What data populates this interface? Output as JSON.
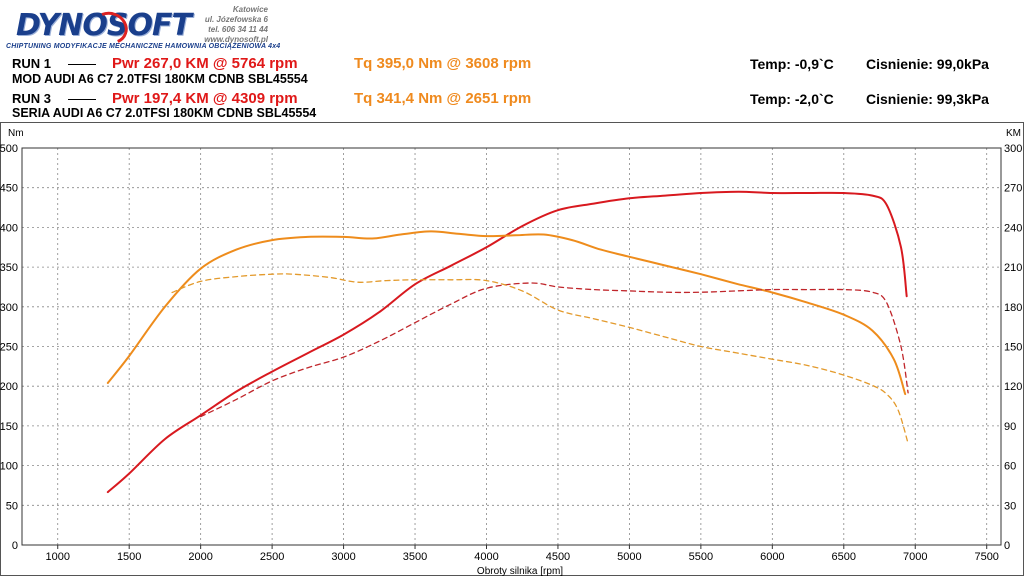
{
  "header": {
    "logo_text": "DYNOSOFT",
    "tagline": "CHIPTUNING   MODYFIKACJE MECHANICZNE   HAMOWNIA OBCIĄŻENIOWA 4x4",
    "address": [
      "Katowice",
      "ul. Józefowska 6",
      "tel. 606 34 11 44",
      "www.dynosoft.pl"
    ],
    "runs": [
      {
        "run": "RUN 1",
        "pwr": "Pwr  267,0 KM @ 5764 rpm",
        "tq": "Tq 395,0 Nm @ 3608 rpm",
        "temp": "Temp: -0,9`C",
        "pressure": "Cisnienie: 99,0kPa",
        "desc": "MOD AUDI A6 C7 2.0TFSI 180KM CDNB SBL45554"
      },
      {
        "run": "RUN 3",
        "pwr": "Pwr  197,4 KM @ 4309 rpm",
        "tq": "Tq 341,4 Nm @ 2651 rpm",
        "temp": "Temp: -2,0`C",
        "pressure": "Cisnienie: 99,3kPa",
        "desc": "SERIA AUDI A6 C7 2.0TFSI 180KM CDNB SBL45554"
      }
    ]
  },
  "colors": {
    "power": "#d8191f",
    "torque": "#ee8c1c",
    "power_stock": "#c0262b",
    "torque_stock": "#e39a2c",
    "grid": "#888888"
  },
  "chart_data": {
    "type": "line",
    "xlabel": "Obroty silnika [rpm]",
    "ylabel_left": "Nm",
    "ylabel_right": "KM",
    "xlim": [
      750,
      7600
    ],
    "ylim_left": [
      0,
      500
    ],
    "ylim_right": [
      0,
      300
    ],
    "x_ticks": [
      1000,
      1500,
      2000,
      2500,
      3000,
      3500,
      4000,
      4500,
      5000,
      5500,
      6000,
      6500,
      7000,
      7500
    ],
    "y_ticks_left": [
      0,
      50,
      100,
      150,
      200,
      250,
      300,
      350,
      400,
      450,
      500
    ],
    "y_ticks_right": [
      0,
      30,
      60,
      90,
      120,
      150,
      180,
      210,
      240,
      270,
      300
    ],
    "grid": true,
    "series": [
      {
        "axis": "right",
        "style": "solid",
        "color_key": "power",
        "points": [
          [
            1350,
            40
          ],
          [
            1500,
            54
          ],
          [
            1750,
            80
          ],
          [
            2000,
            98
          ],
          [
            2250,
            116
          ],
          [
            2500,
            131
          ],
          [
            2750,
            145
          ],
          [
            3000,
            159
          ],
          [
            3250,
            176
          ],
          [
            3500,
            197
          ],
          [
            3750,
            211
          ],
          [
            4000,
            225
          ],
          [
            4250,
            241
          ],
          [
            4500,
            253
          ],
          [
            4750,
            258
          ],
          [
            5000,
            262
          ],
          [
            5250,
            264
          ],
          [
            5500,
            266
          ],
          [
            5764,
            267
          ],
          [
            6000,
            266
          ],
          [
            6250,
            266
          ],
          [
            6500,
            266
          ],
          [
            6700,
            264
          ],
          [
            6800,
            257
          ],
          [
            6900,
            225
          ],
          [
            6940,
            188
          ]
        ]
      },
      {
        "axis": "left",
        "style": "solid",
        "color_key": "torque",
        "points": [
          [
            1350,
            204
          ],
          [
            1500,
            238
          ],
          [
            1750,
            300
          ],
          [
            2000,
            348
          ],
          [
            2250,
            372
          ],
          [
            2500,
            384
          ],
          [
            2750,
            388
          ],
          [
            3000,
            388
          ],
          [
            3200,
            386
          ],
          [
            3400,
            391
          ],
          [
            3608,
            395
          ],
          [
            3800,
            392
          ],
          [
            4000,
            389
          ],
          [
            4200,
            390
          ],
          [
            4400,
            391
          ],
          [
            4600,
            384
          ],
          [
            4800,
            372
          ],
          [
            5000,
            363
          ],
          [
            5250,
            352
          ],
          [
            5500,
            341
          ],
          [
            5750,
            329
          ],
          [
            6000,
            318
          ],
          [
            6250,
            305
          ],
          [
            6500,
            290
          ],
          [
            6700,
            270
          ],
          [
            6850,
            234
          ],
          [
            6930,
            190
          ]
        ]
      },
      {
        "axis": "right",
        "style": "dashed",
        "color_key": "power_stock",
        "points": [
          [
            2000,
            97
          ],
          [
            2250,
            110
          ],
          [
            2500,
            124
          ],
          [
            2750,
            134
          ],
          [
            3000,
            142
          ],
          [
            3250,
            154
          ],
          [
            3500,
            168
          ],
          [
            3750,
            182
          ],
          [
            4000,
            194
          ],
          [
            4309,
            198
          ],
          [
            4500,
            195
          ],
          [
            4750,
            193
          ],
          [
            5000,
            192
          ],
          [
            5250,
            191
          ],
          [
            5500,
            191
          ],
          [
            5750,
            192
          ],
          [
            6000,
            193
          ],
          [
            6250,
            193
          ],
          [
            6500,
            193
          ],
          [
            6700,
            191
          ],
          [
            6800,
            183
          ],
          [
            6900,
            150
          ],
          [
            6950,
            115
          ]
        ]
      },
      {
        "axis": "left",
        "style": "dashed",
        "color_key": "torque_stock",
        "points": [
          [
            1800,
            318
          ],
          [
            2000,
            332
          ],
          [
            2250,
            338
          ],
          [
            2500,
            341
          ],
          [
            2651,
            341
          ],
          [
            2900,
            337
          ],
          [
            3100,
            331
          ],
          [
            3300,
            333
          ],
          [
            3500,
            334
          ],
          [
            3750,
            334
          ],
          [
            4000,
            333
          ],
          [
            4250,
            320
          ],
          [
            4500,
            296
          ],
          [
            4750,
            285
          ],
          [
            5000,
            274
          ],
          [
            5250,
            262
          ],
          [
            5500,
            250
          ],
          [
            5750,
            242
          ],
          [
            6000,
            234
          ],
          [
            6250,
            226
          ],
          [
            6500,
            214
          ],
          [
            6700,
            201
          ],
          [
            6800,
            190
          ],
          [
            6880,
            170
          ],
          [
            6950,
            128
          ]
        ]
      }
    ]
  }
}
